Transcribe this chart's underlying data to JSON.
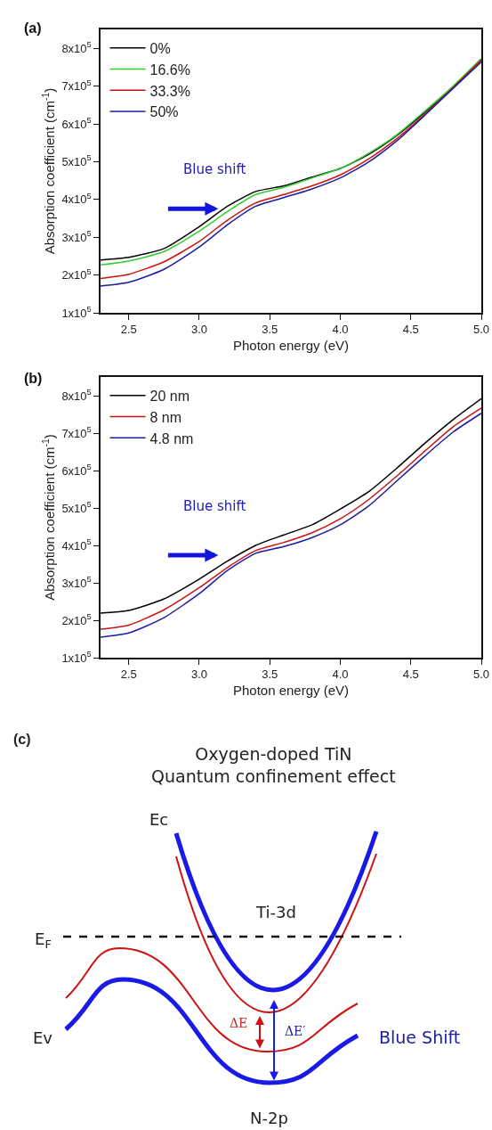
{
  "chart_data": [
    {
      "type": "line",
      "x": [
        2.3,
        2.5,
        2.75,
        3.0,
        3.2,
        3.4,
        3.6,
        3.8,
        4.0,
        4.2,
        4.4,
        4.6,
        4.8,
        5.0
      ],
      "series": [
        {
          "name": "0%",
          "color": "#000000",
          "values": [
            240000,
            247000,
            270000,
            328000,
            382000,
            421000,
            436000,
            459000,
            482000,
            519000,
            569000,
            631000,
            698000,
            770000
          ]
        },
        {
          "name": "16.6%",
          "color": "#33cc33",
          "values": [
            227000,
            237000,
            262000,
            316000,
            368000,
            413000,
            432000,
            457000,
            482000,
            522000,
            571000,
            634000,
            700000,
            773000
          ]
        },
        {
          "name": "33.3%",
          "color": "#cc1111",
          "values": [
            191000,
            202000,
            235000,
            289000,
            345000,
            391000,
            413000,
            436000,
            465000,
            507000,
            561000,
            626000,
            696000,
            769000
          ]
        },
        {
          "name": "50%",
          "color": "#1c1ca0",
          "values": [
            171000,
            181000,
            215000,
            274000,
            333000,
            382000,
            405000,
            428000,
            457000,
            499000,
            555000,
            623000,
            694000,
            764000
          ]
        }
      ],
      "xlim": [
        2.3,
        5.0
      ],
      "xticks": [
        {
          "value": 2.5,
          "label": "2.5"
        },
        {
          "value": 3.0,
          "label": "3.0"
        },
        {
          "value": 3.5,
          "label": "3.5"
        },
        {
          "value": 4.0,
          "label": "4.0"
        },
        {
          "value": 4.5,
          "label": "4.5"
        },
        {
          "value": 5.0,
          "label": "5.0"
        }
      ],
      "ylim": [
        100000,
        850000
      ],
      "yticks": [
        {
          "value": 100000,
          "label": "1x10$^{5}$"
        },
        {
          "value": 200000,
          "label": "2x10$^{5}$"
        },
        {
          "value": 300000,
          "label": "3x10$^{5}$"
        },
        {
          "value": 400000,
          "label": "4x10$^{5}$"
        },
        {
          "value": 500000,
          "label": "5x10$^{5}$"
        },
        {
          "value": 600000,
          "label": "6x10$^{5}$"
        },
        {
          "value": 700000,
          "label": "7x10$^{5}$"
        },
        {
          "value": 800000,
          "label": "8x10$^{5}$"
        }
      ],
      "xlabel": "Photon energy (eV)",
      "ylabel": "Absorption coefficient (cm$^{-1}$)",
      "legend": "top left",
      "annotations": [
        "(a)",
        "Blue shift"
      ]
    },
    {
      "type": "line",
      "x": [
        2.3,
        2.5,
        2.75,
        3.0,
        3.2,
        3.4,
        3.6,
        3.8,
        4.0,
        4.2,
        4.4,
        4.6,
        4.8,
        5.0
      ],
      "series": [
        {
          "name": "20 nm",
          "color": "#000000",
          "values": [
            219000,
            226000,
            257000,
            310000,
            358000,
            400000,
            428000,
            455000,
            497000,
            543000,
            606000,
            673000,
            736000,
            792000
          ]
        },
        {
          "name": "8 nm",
          "color": "#cc1111",
          "values": [
            176000,
            187000,
            228000,
            287000,
            341000,
            386000,
            408000,
            434000,
            471000,
            522000,
            585000,
            652000,
            717000,
            767000
          ]
        },
        {
          "name": "4.8 nm",
          "color": "#1c1ca0",
          "values": [
            155000,
            166000,
            207000,
            271000,
            333000,
            379000,
            397000,
            421000,
            455000,
            505000,
            572000,
            639000,
            703000,
            753000
          ]
        }
      ],
      "xlim": [
        2.3,
        5.0
      ],
      "xticks": [
        {
          "value": 2.5,
          "label": "2.5"
        },
        {
          "value": 3.0,
          "label": "3.0"
        },
        {
          "value": 3.5,
          "label": "3.5"
        },
        {
          "value": 4.0,
          "label": "4.0"
        },
        {
          "value": 4.5,
          "label": "4.5"
        },
        {
          "value": 5.0,
          "label": "5.0"
        }
      ],
      "ylim": [
        100000,
        850000
      ],
      "yticks": [
        {
          "value": 100000,
          "label": "1x10$^{5}$"
        },
        {
          "value": 200000,
          "label": "2x10$^{5}$"
        },
        {
          "value": 300000,
          "label": "3x10$^{5}$"
        },
        {
          "value": 400000,
          "label": "4x10$^{5}$"
        },
        {
          "value": 500000,
          "label": "5x10$^{5}$"
        },
        {
          "value": 600000,
          "label": "6x10$^{5}$"
        },
        {
          "value": 700000,
          "label": "7x10$^{5}$"
        },
        {
          "value": 800000,
          "label": "8x10$^{5}$"
        }
      ],
      "xlabel": "Photon energy (eV)",
      "ylabel": "Absorption coefficient (cm$^{-1}$)",
      "legend": "top left",
      "annotations": [
        "(b)",
        "Blue shift"
      ]
    },
    {
      "type": "other",
      "title": "Oxygen-doped TiN\nQuantum confinement effect",
      "annotations": [
        "(c)",
        "Ec",
        "Ti-3d",
        "E$_{F}$",
        "Ev",
        "ΔE",
        "ΔE′",
        "Blue Shift",
        "N-2p"
      ]
    }
  ]
}
